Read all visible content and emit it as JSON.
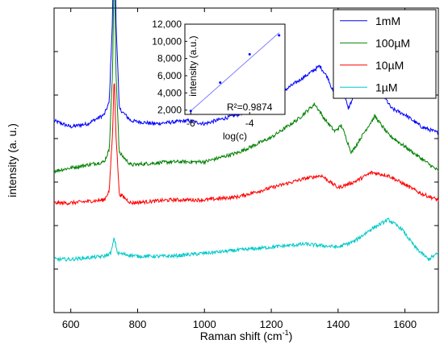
{
  "chart_data": [
    {
      "type": "line",
      "xlabel_main": "Raman shift (cm",
      "xlabel_sup": "-1",
      "xlabel_close": ")",
      "ylabel": "intensity (a. u.)",
      "xlim": [
        550,
        1700
      ],
      "xticks": [
        600,
        800,
        1000,
        1200,
        1400,
        1600
      ],
      "y_tick_labels_shown": false,
      "grid": false,
      "legend_position": "top-right",
      "series": [
        {
          "name": "1mM",
          "color": "#0000ff",
          "baseline_fraction": 0.59,
          "points": [
            [
              550,
              0.04
            ],
            [
              600,
              0.02
            ],
            [
              650,
              0.03
            ],
            [
              700,
              0.06
            ],
            [
              715,
              0.1
            ],
            [
              725,
              0.38
            ],
            [
              730,
              0.85
            ],
            [
              735,
              0.38
            ],
            [
              745,
              0.08
            ],
            [
              780,
              0.04
            ],
            [
              850,
              0.03
            ],
            [
              950,
              0.04
            ],
            [
              1000,
              0.03
            ],
            [
              1100,
              0.06
            ],
            [
              1200,
              0.11
            ],
            [
              1280,
              0.17
            ],
            [
              1320,
              0.2
            ],
            [
              1345,
              0.22
            ],
            [
              1370,
              0.18
            ],
            [
              1390,
              0.12
            ],
            [
              1410,
              0.16
            ],
            [
              1430,
              0.08
            ],
            [
              1460,
              0.15
            ],
            [
              1490,
              0.18
            ],
            [
              1510,
              0.17
            ],
            [
              1560,
              0.08
            ],
            [
              1600,
              0.06
            ],
            [
              1650,
              0.02
            ],
            [
              1700,
              0.0
            ]
          ]
        },
        {
          "name": "100µM",
          "color": "#008000",
          "baseline_fraction": 0.465,
          "points": [
            [
              550,
              0.0
            ],
            [
              600,
              0.01
            ],
            [
              650,
              0.02
            ],
            [
              700,
              0.03
            ],
            [
              715,
              0.07
            ],
            [
              725,
              0.33
            ],
            [
              730,
              0.67
            ],
            [
              735,
              0.33
            ],
            [
              745,
              0.06
            ],
            [
              780,
              0.02
            ],
            [
              900,
              0.03
            ],
            [
              1000,
              0.03
            ],
            [
              1100,
              0.06
            ],
            [
              1200,
              0.11
            ],
            [
              1280,
              0.17
            ],
            [
              1330,
              0.22
            ],
            [
              1360,
              0.17
            ],
            [
              1390,
              0.13
            ],
            [
              1410,
              0.15
            ],
            [
              1440,
              0.06
            ],
            [
              1480,
              0.13
            ],
            [
              1510,
              0.18
            ],
            [
              1550,
              0.12
            ],
            [
              1600,
              0.08
            ],
            [
              1650,
              0.04
            ],
            [
              1700,
              0.0
            ]
          ]
        },
        {
          "name": "10µM",
          "color": "#ff0000",
          "baseline_fraction": 0.34,
          "points": [
            [
              550,
              0.02
            ],
            [
              600,
              0.02
            ],
            [
              700,
              0.03
            ],
            [
              715,
              0.06
            ],
            [
              725,
              0.25
            ],
            [
              730,
              0.44
            ],
            [
              735,
              0.25
            ],
            [
              745,
              0.05
            ],
            [
              780,
              0.02
            ],
            [
              900,
              0.03
            ],
            [
              1000,
              0.03
            ],
            [
              1100,
              0.04
            ],
            [
              1200,
              0.07
            ],
            [
              1300,
              0.1
            ],
            [
              1350,
              0.11
            ],
            [
              1400,
              0.07
            ],
            [
              1450,
              0.09
            ],
            [
              1500,
              0.12
            ],
            [
              1550,
              0.11
            ],
            [
              1600,
              0.08
            ],
            [
              1650,
              0.05
            ],
            [
              1700,
              0.03
            ]
          ]
        },
        {
          "name": "1µM",
          "color": "#00c8c8",
          "baseline_fraction": 0.175,
          "points": [
            [
              550,
              0.0
            ],
            [
              600,
              0.0
            ],
            [
              700,
              0.01
            ],
            [
              720,
              0.02
            ],
            [
              730,
              0.07
            ],
            [
              740,
              0.02
            ],
            [
              800,
              0.01
            ],
            [
              900,
              0.01
            ],
            [
              1000,
              0.02
            ],
            [
              1100,
              0.03
            ],
            [
              1200,
              0.04
            ],
            [
              1300,
              0.05
            ],
            [
              1400,
              0.04
            ],
            [
              1450,
              0.06
            ],
            [
              1500,
              0.1
            ],
            [
              1550,
              0.13
            ],
            [
              1590,
              0.1
            ],
            [
              1630,
              0.04
            ],
            [
              1670,
              0.0
            ],
            [
              1700,
              0.02
            ]
          ]
        }
      ]
    },
    {
      "type": "scatter",
      "role": "inset",
      "xlabel": "log(c)",
      "ylabel": "intensity (a.u.)",
      "xlim": [
        -6.2,
        -2.8
      ],
      "ylim": [
        1500,
        12000
      ],
      "xticks": [
        -6,
        -4
      ],
      "yticks": [
        2000,
        4000,
        6000,
        8000,
        10000,
        12000
      ],
      "ytick_labels": [
        "2,000",
        "4,000",
        "6,000",
        "8,000",
        "10,000",
        "12,000"
      ],
      "x": [
        -6,
        -5,
        -4,
        -3
      ],
      "y": [
        1900,
        5200,
        8500,
        10700
      ],
      "fit_line": {
        "x": [
          -6,
          -3
        ],
        "y": [
          1900,
          11000
        ]
      },
      "point_color": "#0000ff",
      "line_color": "#8080ff",
      "annotation": "R²=0.9874"
    }
  ]
}
